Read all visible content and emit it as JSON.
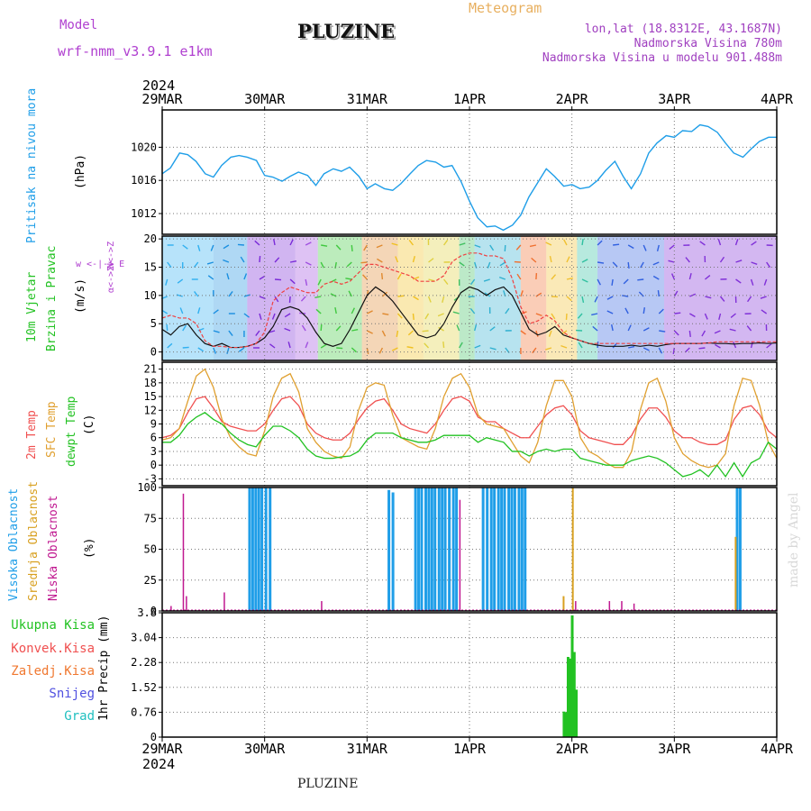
{
  "header": {
    "model_label": "Model",
    "model_name": "wrf-nmm_v3.9.1  e1km",
    "station": "PLUZINE",
    "product": "Meteogram",
    "coords": "lon,lat (18.8312E, 43.1687N)",
    "elevation": "Nadmorska Visina 780m",
    "model_elevation": "Nadmorska Visina u modelu 901.488m",
    "watermark": "made by Angel",
    "footer_station": "PLUZINE"
  },
  "time_axis": {
    "year_top": "2024",
    "year_bottom": "2024",
    "labels": [
      "29MAR",
      "30MAR",
      "31MAR",
      "1APR",
      "2APR",
      "3APR",
      "4APR"
    ]
  },
  "colors": {
    "pressure": "#1f9ee8",
    "temp2m": "#f05050",
    "sfc": "#e0a030",
    "dewpt": "#22c222",
    "cloud_high": "#1f9ee8",
    "cloud_mid": "#d8a020",
    "cloud_low": "#c01890",
    "precip": "#22c222",
    "model": "#b040d0",
    "coords": "#a040c0",
    "meteogram": "#e8b060"
  },
  "chart_data": [
    {
      "type": "line",
      "panel": "pressure",
      "ylabel_colored": "Pritisak na nivou mora",
      "ylabel_unit": "(hPa)",
      "yticks": [
        1012,
        1016,
        1020
      ],
      "ylim": [
        1009.5,
        1024.5
      ],
      "x_days": [
        0,
        0.08,
        0.17,
        0.25,
        0.33,
        0.42,
        0.5,
        0.58,
        0.67,
        0.75,
        0.83,
        0.92,
        1,
        1.08,
        1.17,
        1.25,
        1.33,
        1.42,
        1.5,
        1.58,
        1.67,
        1.75,
        1.83,
        1.92,
        2,
        2.08,
        2.17,
        2.25,
        2.33,
        2.42,
        2.5,
        2.58,
        2.67,
        2.75,
        2.83,
        2.92,
        3,
        3.08,
        3.17,
        3.25,
        3.33,
        3.42,
        3.5,
        3.58,
        3.67,
        3.75,
        3.83,
        3.92,
        4,
        4.08,
        4.17,
        4.25,
        4.33,
        4.42,
        4.5,
        4.58,
        4.67,
        4.75,
        4.83,
        4.92,
        5,
        5.08,
        5.17,
        5.25,
        5.33,
        5.42,
        5.5,
        5.58,
        5.67,
        5.75,
        5.83,
        5.92,
        6
      ],
      "values": [
        1016.8,
        1017.5,
        1019.3,
        1019.1,
        1018.3,
        1016.8,
        1016.4,
        1017.8,
        1018.8,
        1019.0,
        1018.8,
        1018.4,
        1016.6,
        1016.4,
        1015.9,
        1016.5,
        1017.0,
        1016.6,
        1015.4,
        1016.8,
        1017.4,
        1017.1,
        1017.6,
        1016.5,
        1015.0,
        1015.6,
        1015.0,
        1014.8,
        1015.6,
        1016.8,
        1017.8,
        1018.4,
        1018.2,
        1017.6,
        1017.8,
        1015.8,
        1013.5,
        1011.5,
        1010.4,
        1010.5,
        1010.0,
        1010.6,
        1011.8,
        1014.0,
        1015.8,
        1017.4,
        1016.5,
        1015.3,
        1015.5,
        1015.0,
        1015.2,
        1016.0,
        1017.2,
        1018.3,
        1016.5,
        1015.0,
        1016.8,
        1019.3,
        1020.5,
        1021.4,
        1021.2,
        1022.0,
        1021.9,
        1022.7,
        1022.5,
        1021.8,
        1020.5,
        1019.3,
        1018.8,
        1019.8,
        1020.7,
        1021.2,
        1021.2
      ]
    },
    {
      "type": "line",
      "panel": "wind",
      "ylabel_colored_1": "10m Vjetar",
      "ylabel_colored_2": "Brzina i Pravac",
      "ylabel_unit": "(m/s)",
      "compass_text": "w <-|-> E",
      "compass_side_a": "N<->Z",
      "compass_side_b": "α<->Σ",
      "yticks": [
        0,
        5,
        10,
        15,
        20
      ],
      "ylim": [
        -1.5,
        20.5
      ],
      "speed_series": [
        {
          "name": "black",
          "values": [
            4.0,
            3.0,
            4.5,
            5.0,
            3.0,
            1.5,
            1.0,
            1.5,
            0.8,
            0.8,
            1.0,
            1.5,
            2.5,
            4.5,
            7.5,
            8.0,
            7.5,
            6.0,
            3.5,
            1.5,
            1.0,
            1.5,
            4.0,
            7.0,
            10.0,
            11.5,
            10.5,
            9.0,
            7.0,
            5.0,
            3.0,
            2.5,
            3.0,
            5.0,
            8.0,
            10.5,
            11.5,
            11.0,
            10.0,
            11.0,
            11.5,
            10.0,
            7.0,
            4.0,
            3.0,
            3.5,
            4.5,
            3.0,
            2.5,
            2.0,
            1.5,
            1.2,
            1.0,
            1.0,
            1.0,
            1.2,
            1.0,
            1.2,
            1.0,
            1.3,
            1.5,
            1.5,
            1.5,
            1.5,
            1.6,
            1.5,
            1.5,
            1.4,
            1.5,
            1.5,
            1.6,
            1.5,
            1.6
          ]
        },
        {
          "name": "red",
          "values": [
            6.0,
            6.5,
            6.0,
            6.0,
            5.0,
            2.0,
            1.0,
            1.0,
            0.8,
            0.8,
            1.0,
            1.5,
            3.5,
            9.0,
            10.5,
            11.5,
            11.0,
            10.5,
            10.5,
            12.0,
            12.5,
            12.0,
            12.5,
            14.0,
            15.5,
            15.5,
            15.0,
            14.5,
            14.0,
            13.5,
            12.5,
            12.5,
            12.5,
            13.5,
            16.0,
            17.0,
            17.5,
            17.5,
            17.0,
            17.0,
            16.5,
            13.0,
            8.0,
            5.0,
            5.5,
            6.5,
            5.5,
            3.5,
            2.5,
            2.0,
            1.5,
            1.5,
            1.5,
            1.5,
            1.5,
            1.5,
            1.5,
            1.5,
            1.5,
            1.5,
            1.5,
            1.5,
            1.5,
            1.5,
            1.6,
            1.8,
            1.8,
            1.8,
            1.8,
            1.8,
            1.8,
            1.8,
            1.8
          ]
        }
      ]
    },
    {
      "type": "line",
      "panel": "temperature",
      "ylabel_colored_1": "2m Temp",
      "ylabel_colored_2": "SFC Temp",
      "ylabel_colored_3": "dewpt Temp",
      "ylabel_unit": "(C)",
      "yticks": [
        -3,
        0,
        3,
        6,
        9,
        12,
        15,
        18,
        21
      ],
      "ylim": [
        -4.5,
        22.5
      ],
      "series": [
        {
          "name": "2m Temp",
          "values": [
            6.0,
            6.5,
            8.0,
            11.5,
            14.5,
            15.0,
            12.5,
            9.5,
            8.5,
            8.0,
            7.5,
            7.5,
            9.0,
            12.0,
            14.5,
            15.0,
            13.0,
            9.0,
            7.0,
            6.0,
            5.5,
            5.5,
            7.0,
            10.0,
            12.5,
            14.0,
            14.5,
            12.0,
            9.0,
            8.0,
            7.5,
            7.0,
            9.0,
            12.0,
            14.5,
            15.0,
            14.0,
            10.5,
            9.5,
            9.5,
            8.0,
            7.0,
            6.0,
            6.0,
            8.5,
            11.0,
            12.5,
            13.0,
            11.0,
            7.5,
            6.0,
            5.5,
            5.0,
            4.5,
            4.5,
            6.5,
            10.0,
            12.5,
            12.5,
            10.5,
            7.5,
            6.0,
            6.0,
            5.0,
            4.5,
            4.5,
            5.5,
            10.0,
            12.5,
            13.0,
            11.0,
            7.5,
            6.0
          ]
        },
        {
          "name": "SFC Temp",
          "values": [
            5.5,
            6.0,
            8.0,
            14.0,
            19.5,
            21.0,
            17.0,
            10.0,
            6.0,
            4.0,
            2.5,
            2.0,
            7.5,
            15.0,
            19.0,
            20.0,
            16.0,
            8.0,
            5.0,
            3.0,
            2.0,
            1.5,
            4.0,
            12.0,
            17.0,
            18.0,
            17.5,
            11.0,
            6.0,
            5.0,
            4.0,
            3.5,
            8.0,
            15.0,
            19.0,
            20.0,
            17.0,
            11.0,
            9.0,
            8.5,
            8.0,
            5.0,
            2.0,
            0.5,
            5.0,
            13.0,
            18.5,
            18.5,
            15.0,
            6.0,
            3.0,
            2.0,
            0.5,
            -0.5,
            -0.5,
            3.0,
            12.0,
            18.0,
            19.0,
            14.0,
            6.0,
            2.5,
            1.0,
            0.0,
            -0.5,
            0.0,
            2.5,
            13.0,
            19.0,
            18.5,
            13.0,
            5.0,
            1.5
          ]
        },
        {
          "name": "dewpt Temp",
          "values": [
            5.0,
            5.0,
            6.5,
            9.0,
            10.5,
            11.5,
            10.0,
            9.0,
            7.0,
            5.5,
            4.5,
            4.0,
            6.5,
            8.5,
            8.5,
            7.5,
            6.0,
            3.5,
            2.0,
            1.5,
            1.5,
            1.8,
            2.0,
            3.0,
            5.5,
            7.0,
            7.0,
            7.0,
            6.0,
            5.5,
            5.0,
            5.0,
            5.5,
            6.5,
            6.5,
            6.5,
            6.5,
            5.0,
            6.0,
            5.5,
            5.0,
            3.0,
            3.0,
            2.0,
            3.0,
            3.5,
            3.0,
            3.5,
            3.5,
            1.5,
            1.0,
            0.5,
            0.0,
            0.0,
            0.0,
            1.0,
            1.5,
            2.0,
            1.5,
            0.5,
            -1.0,
            -2.5,
            -2.0,
            -1.0,
            -2.5,
            0.0,
            -2.5,
            0.5,
            -2.5,
            0.5,
            1.5,
            5.0,
            3.5
          ]
        }
      ]
    },
    {
      "type": "bar",
      "panel": "clouds",
      "ylabel_colored_1": "Visoka Oblacnost",
      "ylabel_colored_2": "Srednja Oblacnost",
      "ylabel_colored_3": "Niska Oblacnost",
      "ylabel_unit": "(%)",
      "yticks": [
        0,
        25,
        50,
        75,
        100
      ],
      "ylim": [
        0,
        100
      ],
      "series": [
        {
          "name": "Visoka Oblacnost",
          "x": [
            0.84,
            0.87,
            0.9,
            0.93,
            0.96,
            1.0,
            1.04,
            2.2,
            2.24,
            2.46,
            2.49,
            2.52,
            2.56,
            2.59,
            2.62,
            2.65,
            2.69,
            2.72,
            2.75,
            2.79,
            2.83,
            2.86,
            3.12,
            3.16,
            3.2,
            3.23,
            3.27,
            3.3,
            3.33,
            3.37,
            3.4,
            3.43,
            3.47,
            3.5,
            3.53,
            5.6,
            5.63
          ],
          "values": [
            100,
            100,
            100,
            100,
            100,
            100,
            100,
            98,
            96,
            100,
            100,
            100,
            100,
            100,
            100,
            100,
            100,
            100,
            100,
            100,
            100,
            100,
            100,
            100,
            100,
            100,
            100,
            100,
            100,
            100,
            100,
            100,
            100,
            100,
            100,
            100,
            100
          ]
        },
        {
          "name": "Srednja Oblacnost",
          "x": [
            3.91,
            4.0,
            5.59
          ],
          "values": [
            12,
            100,
            60
          ]
        },
        {
          "name": "Niska Oblacnost",
          "x": [
            0.08,
            0.2,
            0.23,
            0.6,
            1.55,
            2.9,
            4.03,
            4.36,
            4.48,
            4.6
          ],
          "values": [
            4,
            95,
            12,
            15,
            8,
            90,
            8,
            8,
            8,
            6
          ]
        }
      ]
    },
    {
      "type": "bar",
      "panel": "precipitation",
      "legend": [
        "Ukupna  Kisa",
        "Konvek.Kisa",
        "Zaledj.Kisa",
        "Snijeg",
        "Grad"
      ],
      "legend_colors": [
        "#22c222",
        "#f05050",
        "#f07830",
        "#5050e0",
        "#20c0c0"
      ],
      "ylabel_unit": "1hr Precip (mm)",
      "yticks": [
        "0",
        "0.76",
        "1.52",
        "2.28",
        "3.04",
        "3.8"
      ],
      "ylim": [
        0,
        3.8
      ],
      "x": [
        3.91,
        3.93,
        3.95,
        3.97,
        3.99,
        4.01,
        4.03,
        4.05
      ],
      "values": [
        0.78,
        0.76,
        2.45,
        2.4,
        3.72,
        2.6,
        1.45,
        0
      ]
    }
  ]
}
